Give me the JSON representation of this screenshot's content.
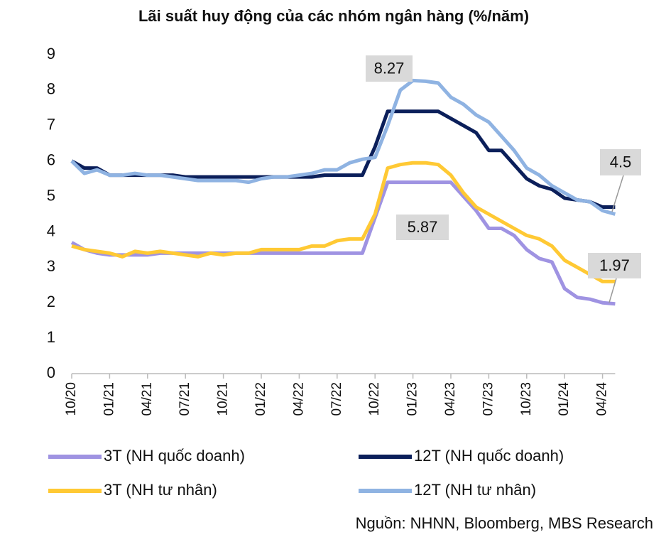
{
  "chart_data": {
    "type": "line",
    "title": "Lãi suất huy động của các nhóm ngân hàng (%/năm)",
    "source": "Nguồn: NHNN, Bloomberg, MBS Research",
    "categories": [
      "10/20",
      null,
      null,
      "01/21",
      null,
      null,
      "04/21",
      null,
      null,
      "07/21",
      null,
      null,
      "10/21",
      null,
      null,
      "01/22",
      null,
      null,
      "04/22",
      null,
      null,
      "07/22",
      null,
      null,
      "10/22",
      null,
      null,
      "01/23",
      null,
      null,
      "04/23",
      null,
      null,
      "07/23",
      null,
      null,
      "10/23",
      null,
      null,
      "01/24",
      null,
      null,
      "04/24",
      null
    ],
    "series": [
      {
        "name": "3T (NH quốc doanh)",
        "color": "#9f93e2",
        "values": [
          3.7,
          3.5,
          3.4,
          3.35,
          3.35,
          3.35,
          3.35,
          3.4,
          3.4,
          3.4,
          3.4,
          3.4,
          3.4,
          3.4,
          3.4,
          3.4,
          3.4,
          3.4,
          3.4,
          3.4,
          3.4,
          3.4,
          3.4,
          3.4,
          4.4,
          5.4,
          5.4,
          5.4,
          5.4,
          5.4,
          5.4,
          5.0,
          4.6,
          4.1,
          4.1,
          3.9,
          3.5,
          3.25,
          3.15,
          2.4,
          2.15,
          2.1,
          2.0,
          1.97
        ]
      },
      {
        "name": "12T (NH quốc doanh)",
        "color": "#0b1f5a",
        "values": [
          6.0,
          5.8,
          5.8,
          5.6,
          5.6,
          5.6,
          5.6,
          5.6,
          5.6,
          5.55,
          5.55,
          5.55,
          5.55,
          5.55,
          5.55,
          5.55,
          5.55,
          5.55,
          5.55,
          5.55,
          5.6,
          5.6,
          5.6,
          5.6,
          6.4,
          7.4,
          7.4,
          7.4,
          7.4,
          7.4,
          7.2,
          7.0,
          6.8,
          6.3,
          6.3,
          5.9,
          5.5,
          5.3,
          5.2,
          4.95,
          4.9,
          4.85,
          4.7,
          4.7
        ]
      },
      {
        "name": "3T (NH tư nhân)",
        "color": "#ffc934",
        "values": [
          3.6,
          3.5,
          3.45,
          3.4,
          3.3,
          3.45,
          3.4,
          3.45,
          3.4,
          3.35,
          3.3,
          3.4,
          3.35,
          3.4,
          3.4,
          3.5,
          3.5,
          3.5,
          3.5,
          3.6,
          3.6,
          3.75,
          3.8,
          3.8,
          4.5,
          5.8,
          5.9,
          5.95,
          5.95,
          5.9,
          5.6,
          5.1,
          4.7,
          4.5,
          4.3,
          4.1,
          3.9,
          3.8,
          3.6,
          3.2,
          3.0,
          2.8,
          2.6,
          2.6
        ]
      },
      {
        "name": "12T (NH tư nhân)",
        "color": "#8fb3e2",
        "values": [
          6.0,
          5.65,
          5.75,
          5.6,
          5.6,
          5.65,
          5.6,
          5.6,
          5.55,
          5.5,
          5.45,
          5.45,
          5.45,
          5.45,
          5.4,
          5.5,
          5.55,
          5.55,
          5.6,
          5.65,
          5.75,
          5.75,
          5.95,
          6.05,
          6.1,
          7.0,
          8.0,
          8.27,
          8.25,
          8.2,
          7.8,
          7.6,
          7.3,
          7.1,
          6.7,
          6.3,
          5.8,
          5.6,
          5.3,
          5.1,
          4.9,
          4.85,
          4.6,
          4.5
        ]
      }
    ],
    "annotations": [
      "8.27",
      "5.87",
      "4.5",
      "1.97"
    ],
    "ylim": [
      0,
      9
    ],
    "yticks": [
      0,
      1,
      2,
      3,
      4,
      5,
      6,
      7,
      8,
      9
    ],
    "grid": false
  }
}
